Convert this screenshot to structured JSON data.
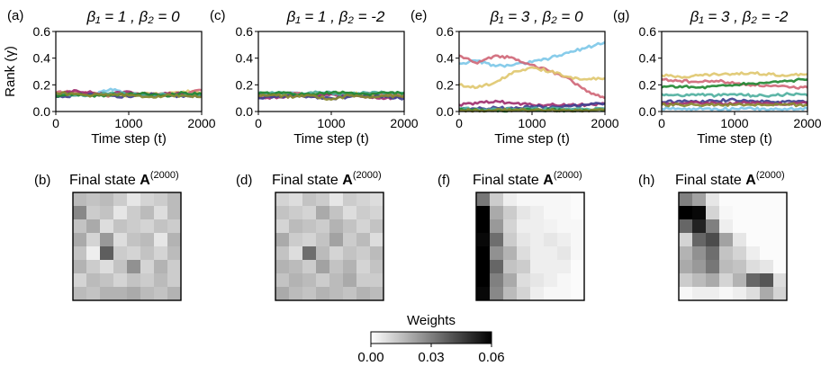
{
  "figure": {
    "colorbar": {
      "title": "Weights",
      "tick_labels": [
        "0.00",
        "0.03",
        "0.06"
      ],
      "range": [
        0,
        0.06
      ]
    }
  },
  "chart_data": [
    {
      "type": "line",
      "panel_label": "(a)",
      "title": "β₁ = 1 ,  β₂ = 0",
      "xlabel": "Time step (t)",
      "ylabel": "Rank (γ)",
      "xlim": [
        0,
        2000
      ],
      "ylim": [
        0,
        0.6
      ],
      "x_ticks": [
        "0",
        "1000",
        "2000"
      ],
      "y_ticks": [
        "0.0",
        "0.2",
        "0.4",
        "0.6"
      ],
      "x": [
        0,
        250,
        500,
        750,
        1000,
        1250,
        1500,
        1750,
        2000
      ],
      "series": [
        {
          "color": "#7ec8e8",
          "values": [
            0.12,
            0.13,
            0.12,
            0.17,
            0.13,
            0.12,
            0.13,
            0.12,
            0.12
          ]
        },
        {
          "color": "#e0c870",
          "values": [
            0.13,
            0.12,
            0.14,
            0.13,
            0.12,
            0.14,
            0.13,
            0.15,
            0.14
          ]
        },
        {
          "color": "#d06878",
          "values": [
            0.14,
            0.15,
            0.13,
            0.12,
            0.14,
            0.13,
            0.12,
            0.13,
            0.16
          ]
        },
        {
          "color": "#a03070",
          "values": [
            0.12,
            0.16,
            0.14,
            0.13,
            0.15,
            0.12,
            0.14,
            0.13,
            0.12
          ]
        },
        {
          "color": "#404090",
          "values": [
            0.11,
            0.12,
            0.13,
            0.12,
            0.11,
            0.13,
            0.12,
            0.11,
            0.12
          ]
        },
        {
          "color": "#50b0a0",
          "values": [
            0.13,
            0.12,
            0.12,
            0.14,
            0.13,
            0.12,
            0.13,
            0.12,
            0.13
          ]
        },
        {
          "color": "#228833",
          "values": [
            0.12,
            0.13,
            0.12,
            0.12,
            0.13,
            0.13,
            0.12,
            0.14,
            0.13
          ]
        },
        {
          "color": "#888830",
          "values": [
            0.14,
            0.13,
            0.12,
            0.13,
            0.12,
            0.11,
            0.12,
            0.12,
            0.11
          ]
        }
      ]
    },
    {
      "type": "line",
      "panel_label": "(c)",
      "title": "β₁ = 1 ,  β₂ = -2",
      "xlabel": "Time step (t)",
      "ylabel": "",
      "xlim": [
        0,
        2000
      ],
      "ylim": [
        0,
        0.6
      ],
      "x_ticks": [
        "0",
        "1000",
        "2000"
      ],
      "y_ticks": [
        "0.0",
        "0.2",
        "0.4",
        "0.6"
      ],
      "x": [
        0,
        250,
        500,
        750,
        1000,
        1250,
        1500,
        1750,
        2000
      ],
      "series": [
        {
          "color": "#7ec8e8",
          "values": [
            0.13,
            0.13,
            0.14,
            0.13,
            0.14,
            0.13,
            0.13,
            0.14,
            0.13
          ]
        },
        {
          "color": "#e0c870",
          "values": [
            0.14,
            0.13,
            0.12,
            0.14,
            0.13,
            0.14,
            0.12,
            0.13,
            0.14
          ]
        },
        {
          "color": "#d06878",
          "values": [
            0.12,
            0.13,
            0.14,
            0.12,
            0.13,
            0.12,
            0.14,
            0.13,
            0.12
          ]
        },
        {
          "color": "#a03070",
          "values": [
            0.11,
            0.1,
            0.12,
            0.11,
            0.13,
            0.12,
            0.11,
            0.1,
            0.11
          ]
        },
        {
          "color": "#404090",
          "values": [
            0.1,
            0.11,
            0.12,
            0.11,
            0.1,
            0.11,
            0.12,
            0.11,
            0.1
          ]
        },
        {
          "color": "#50b0a0",
          "values": [
            0.14,
            0.14,
            0.13,
            0.14,
            0.14,
            0.13,
            0.14,
            0.14,
            0.14
          ]
        },
        {
          "color": "#228833",
          "values": [
            0.13,
            0.14,
            0.13,
            0.13,
            0.14,
            0.14,
            0.13,
            0.14,
            0.14
          ]
        },
        {
          "color": "#888830",
          "values": [
            0.12,
            0.12,
            0.11,
            0.12,
            0.09,
            0.12,
            0.11,
            0.12,
            0.11
          ]
        }
      ]
    },
    {
      "type": "line",
      "panel_label": "(e)",
      "title": "β₁ = 3 ,  β₂ = 0",
      "xlabel": "Time step (t)",
      "ylabel": "",
      "xlim": [
        0,
        2000
      ],
      "ylim": [
        0,
        0.6
      ],
      "x_ticks": [
        "0",
        "1000",
        "2000"
      ],
      "y_ticks": [
        "0.0",
        "0.2",
        "0.4",
        "0.6"
      ],
      "x": [
        0,
        250,
        500,
        750,
        1000,
        1250,
        1500,
        1750,
        2000
      ],
      "series": [
        {
          "color": "#7ec8e8",
          "values": [
            0.36,
            0.38,
            0.34,
            0.35,
            0.37,
            0.4,
            0.44,
            0.48,
            0.52
          ]
        },
        {
          "color": "#d06878",
          "values": [
            0.42,
            0.36,
            0.42,
            0.4,
            0.35,
            0.3,
            0.25,
            0.15,
            0.1
          ]
        },
        {
          "color": "#e0c870",
          "values": [
            0.2,
            0.18,
            0.22,
            0.3,
            0.33,
            0.3,
            0.26,
            0.24,
            0.25
          ]
        },
        {
          "color": "#a03070",
          "values": [
            0.05,
            0.06,
            0.08,
            0.06,
            0.05,
            0.05,
            0.05,
            0.05,
            0.06
          ]
        },
        {
          "color": "#404090",
          "values": [
            0.02,
            0.02,
            0.03,
            0.02,
            0.04,
            0.03,
            0.04,
            0.05,
            0.06
          ]
        },
        {
          "color": "#50b0a0",
          "values": [
            0.02,
            0.02,
            0.02,
            0.02,
            0.02,
            0.02,
            0.02,
            0.02,
            0.02
          ]
        },
        {
          "color": "#228833",
          "values": [
            0.01,
            0.01,
            0.01,
            0.01,
            0.01,
            0.01,
            0.01,
            0.01,
            0.01
          ]
        },
        {
          "color": "#888830",
          "values": [
            0.01,
            0.01,
            0.01,
            0.01,
            0.01,
            0.01,
            0.01,
            0.01,
            0.01
          ]
        }
      ]
    },
    {
      "type": "line",
      "panel_label": "(g)",
      "title": "β₁ = 3 ,  β₂ = -2",
      "xlabel": "Time step (t)",
      "ylabel": "",
      "xlim": [
        0,
        2000
      ],
      "ylim": [
        0,
        0.6
      ],
      "x_ticks": [
        "0",
        "1000",
        "2000"
      ],
      "y_ticks": [
        "0.0",
        "0.2",
        "0.4",
        "0.6"
      ],
      "x": [
        0,
        250,
        500,
        750,
        1000,
        1250,
        1500,
        1750,
        2000
      ],
      "series": [
        {
          "color": "#e0c870",
          "values": [
            0.27,
            0.26,
            0.27,
            0.28,
            0.28,
            0.29,
            0.28,
            0.27,
            0.28
          ]
        },
        {
          "color": "#d06878",
          "values": [
            0.24,
            0.23,
            0.22,
            0.23,
            0.21,
            0.2,
            0.19,
            0.18,
            0.18
          ]
        },
        {
          "color": "#228833",
          "values": [
            0.18,
            0.19,
            0.18,
            0.19,
            0.2,
            0.21,
            0.22,
            0.23,
            0.24
          ]
        },
        {
          "color": "#50b0a0",
          "values": [
            0.13,
            0.12,
            0.13,
            0.12,
            0.13,
            0.12,
            0.12,
            0.13,
            0.12
          ]
        },
        {
          "color": "#404090",
          "values": [
            0.07,
            0.08,
            0.07,
            0.08,
            0.09,
            0.08,
            0.07,
            0.08,
            0.07
          ]
        },
        {
          "color": "#a03070",
          "values": [
            0.06,
            0.06,
            0.07,
            0.06,
            0.06,
            0.07,
            0.06,
            0.06,
            0.06
          ]
        },
        {
          "color": "#888830",
          "values": [
            0.05,
            0.05,
            0.05,
            0.05,
            0.05,
            0.05,
            0.05,
            0.05,
            0.05
          ]
        },
        {
          "color": "#7ec8e8",
          "values": [
            0.02,
            0.02,
            0.02,
            0.02,
            0.02,
            0.02,
            0.02,
            0.02,
            0.02
          ]
        }
      ]
    },
    {
      "type": "heatmap",
      "panel_label": "(b)",
      "title": "Final state A(2000)",
      "title_main": "Final state ",
      "title_bold": "A",
      "title_sup": "(2000)",
      "vmin": 0,
      "vmax": 0.06,
      "values": [
        [
          0.016,
          0.014,
          0.016,
          0.012,
          0.006,
          0.01,
          0.012,
          0.016
        ],
        [
          0.028,
          0.012,
          0.014,
          0.006,
          0.012,
          0.016,
          0.008,
          0.016
        ],
        [
          0.014,
          0.02,
          0.008,
          0.014,
          0.012,
          0.01,
          0.014,
          0.012
        ],
        [
          0.02,
          0.01,
          0.024,
          0.008,
          0.014,
          0.016,
          0.006,
          0.018
        ],
        [
          0.014,
          0.004,
          0.038,
          0.012,
          0.01,
          0.014,
          0.01,
          0.016
        ],
        [
          0.018,
          0.012,
          0.008,
          0.014,
          0.026,
          0.01,
          0.018,
          0.012
        ],
        [
          0.01,
          0.016,
          0.014,
          0.01,
          0.014,
          0.012,
          0.016,
          0.012
        ],
        [
          0.016,
          0.014,
          0.018,
          0.018,
          0.02,
          0.016,
          0.014,
          0.018
        ]
      ]
    },
    {
      "type": "heatmap",
      "panel_label": "(d)",
      "title": "Final state A(2000)",
      "title_main": "Final state ",
      "title_bold": "A",
      "title_sup": "(2000)",
      "vmin": 0,
      "vmax": 0.06,
      "values": [
        [
          0.01,
          0.008,
          0.014,
          0.012,
          0.006,
          0.012,
          0.01,
          0.008
        ],
        [
          0.014,
          0.012,
          0.01,
          0.02,
          0.014,
          0.008,
          0.012,
          0.01
        ],
        [
          0.01,
          0.016,
          0.014,
          0.012,
          0.018,
          0.014,
          0.01,
          0.014
        ],
        [
          0.02,
          0.012,
          0.01,
          0.014,
          0.022,
          0.012,
          0.016,
          0.008
        ],
        [
          0.014,
          0.008,
          0.034,
          0.016,
          0.01,
          0.014,
          0.012,
          0.016
        ],
        [
          0.018,
          0.016,
          0.012,
          0.022,
          0.014,
          0.018,
          0.01,
          0.014
        ],
        [
          0.014,
          0.018,
          0.016,
          0.012,
          0.016,
          0.02,
          0.012,
          0.012
        ],
        [
          0.02,
          0.016,
          0.014,
          0.018,
          0.016,
          0.014,
          0.018,
          0.016
        ]
      ]
    },
    {
      "type": "heatmap",
      "panel_label": "(f)",
      "title": "Final state A(2000)",
      "title_main": "Final state ",
      "title_bold": "A",
      "title_sup": "(2000)",
      "vmin": 0,
      "vmax": 0.06,
      "values": [
        [
          0.032,
          0.012,
          0.004,
          0.002,
          0.002,
          0.002,
          0.002,
          0.001
        ],
        [
          0.06,
          0.02,
          0.012,
          0.006,
          0.004,
          0.002,
          0.002,
          0.001
        ],
        [
          0.06,
          0.024,
          0.01,
          0.004,
          0.004,
          0.003,
          0.002,
          0.002
        ],
        [
          0.058,
          0.034,
          0.012,
          0.006,
          0.004,
          0.006,
          0.004,
          0.002
        ],
        [
          0.06,
          0.026,
          0.018,
          0.008,
          0.004,
          0.004,
          0.006,
          0.002
        ],
        [
          0.06,
          0.036,
          0.014,
          0.012,
          0.004,
          0.004,
          0.004,
          0.001
        ],
        [
          0.06,
          0.03,
          0.02,
          0.008,
          0.006,
          0.004,
          0.002,
          0.001
        ],
        [
          0.058,
          0.028,
          0.016,
          0.01,
          0.004,
          0.002,
          0.002,
          0.001
        ]
      ]
    },
    {
      "type": "heatmap",
      "panel_label": "(h)",
      "title": "Final state A(2000)",
      "title_main": "Final state ",
      "title_bold": "A",
      "title_sup": "(2000)",
      "vmin": 0,
      "vmax": 0.06,
      "values": [
        [
          0.03,
          0.022,
          0.006,
          0.001,
          0.001,
          0.001,
          0.001,
          0.001
        ],
        [
          0.06,
          0.058,
          0.01,
          0.002,
          0.001,
          0.001,
          0.001,
          0.001
        ],
        [
          0.036,
          0.052,
          0.03,
          0.004,
          0.001,
          0.001,
          0.001,
          0.001
        ],
        [
          0.01,
          0.036,
          0.042,
          0.022,
          0.006,
          0.001,
          0.001,
          0.001
        ],
        [
          0.018,
          0.026,
          0.034,
          0.014,
          0.01,
          0.004,
          0.001,
          0.001
        ],
        [
          0.02,
          0.024,
          0.032,
          0.016,
          0.014,
          0.008,
          0.006,
          0.001
        ],
        [
          0.012,
          0.016,
          0.02,
          0.01,
          0.018,
          0.036,
          0.04,
          0.008
        ],
        [
          0.002,
          0.004,
          0.004,
          0.002,
          0.004,
          0.008,
          0.02,
          0.01
        ]
      ]
    }
  ]
}
